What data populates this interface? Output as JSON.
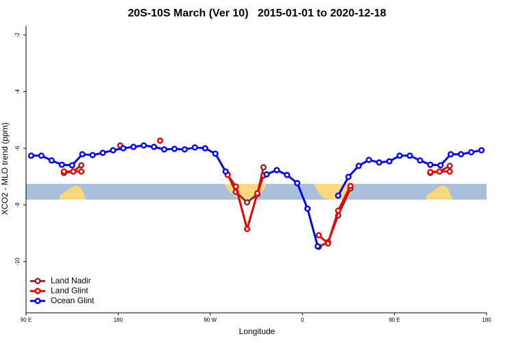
{
  "chart_data": {
    "type": "line",
    "title": "20S-10S March (Ver 10)   2015-01-01 to 2020-12-18",
    "xlabel": "Longitude",
    "ylabel": "XCO2 - MLO trend (ppm)",
    "xlim": [
      90,
      540
    ],
    "xticks": [
      {
        "value": 90,
        "label": "90 E"
      },
      {
        "value": 180,
        "label": "180"
      },
      {
        "value": 270,
        "label": "90 W"
      },
      {
        "value": 360,
        "label": "0"
      },
      {
        "value": 450,
        "label": "90 E"
      },
      {
        "value": 540,
        "label": "180"
      }
    ],
    "ylim": [
      -11.8,
      -1.7
    ],
    "yticks": [
      -2,
      -4,
      -6,
      -8,
      -10
    ],
    "legend": "bottom-left",
    "series": [
      {
        "name": "Land Nadir",
        "color": "#8b2a2a",
        "x": [
          127,
          136,
          144,
          200,
          287,
          295,
          306,
          316,
          322,
          350,
          376,
          385,
          395,
          407,
          450,
          485,
          494,
          504
        ],
        "values": [
          -6.87,
          -6.82,
          -6.6,
          null,
          -6.92,
          -7.54,
          -7.91,
          -7.62,
          -6.67,
          null,
          -9.48,
          -9.31,
          -8.37,
          -7.42,
          null,
          -6.87,
          -6.82,
          -6.62
        ]
      },
      {
        "name": "Land Glint",
        "color": "#ee0000",
        "x": [
          127,
          136,
          144,
          160,
          182,
          200,
          221,
          250,
          287,
          295,
          306,
          316,
          322,
          350,
          376,
          385,
          395,
          407,
          450,
          485,
          494,
          504
        ],
        "values": [
          -6.82,
          -6.82,
          -6.82,
          null,
          -5.9,
          null,
          -5.73,
          null,
          -6.94,
          -7.35,
          -8.85,
          -7.59,
          -6.96,
          null,
          -9.07,
          -9.36,
          -8.2,
          -7.33,
          null,
          -6.84,
          -6.82,
          -6.82
        ]
      },
      {
        "name": "Ocean Glint",
        "color": "#0000ee",
        "x": [
          95,
          105,
          115,
          125,
          135,
          145,
          155,
          165,
          175,
          185,
          195,
          205,
          215,
          225,
          235,
          245,
          255,
          265,
          275,
          285,
          305,
          325,
          335,
          345,
          355,
          365,
          375,
          385,
          395,
          405,
          415,
          425,
          435,
          445,
          455,
          465,
          475,
          485,
          495,
          505,
          515,
          525,
          535
        ],
        "values": [
          -6.26,
          -6.26,
          -6.43,
          -6.58,
          -6.6,
          -6.21,
          -6.24,
          -6.16,
          -6.07,
          -6.0,
          -5.95,
          -5.9,
          -5.95,
          -6.04,
          -6.02,
          -6.04,
          -5.97,
          -6.0,
          -6.19,
          -6.82,
          null,
          -6.92,
          -6.77,
          -6.94,
          -7.23,
          -8.13,
          -9.46,
          null,
          -7.67,
          -7.01,
          -6.62,
          -6.41,
          -6.5,
          -6.46,
          -6.26,
          -6.26,
          -6.43,
          -6.58,
          -6.6,
          -6.21,
          -6.21,
          -6.14,
          -6.07
        ]
      }
    ]
  }
}
